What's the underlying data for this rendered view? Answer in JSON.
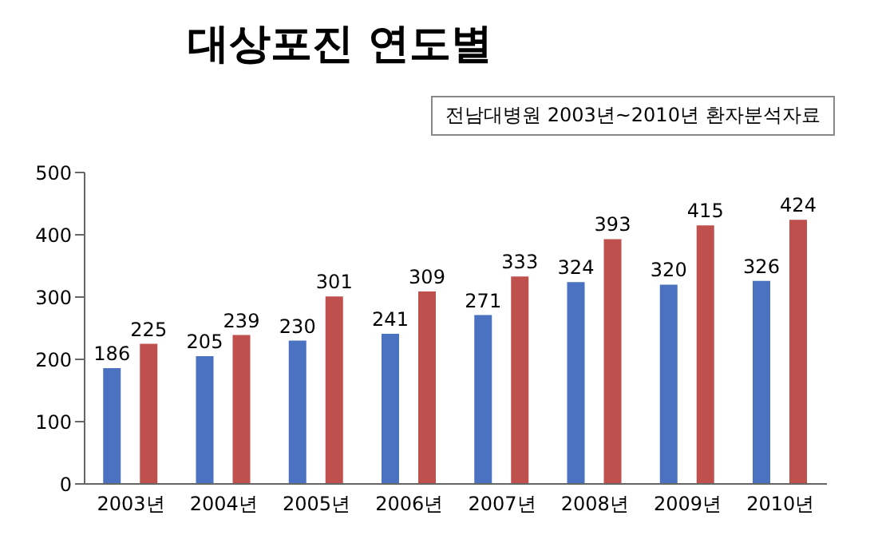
{
  "chart_data": {
    "type": "bar",
    "title": "대상포진 연도별",
    "annotations": [
      "전남대병원 2003년~2010년 환자분석자료"
    ],
    "categories": [
      "2003년",
      "2004년",
      "2005년",
      "2006년",
      "2007년",
      "2008년",
      "2009년",
      "2010년"
    ],
    "series": [
      {
        "color": "#4a72c0",
        "values": [
          186,
          205,
          230,
          241,
          271,
          324,
          320,
          326
        ]
      },
      {
        "color": "#c0504d",
        "values": [
          225,
          239,
          301,
          309,
          333,
          393,
          415,
          424
        ]
      }
    ],
    "ylim": [
      0,
      500
    ],
    "yticks": [
      0,
      100,
      200,
      300,
      400,
      500
    ],
    "grid": false,
    "legend": false,
    "data_labels": true
  }
}
